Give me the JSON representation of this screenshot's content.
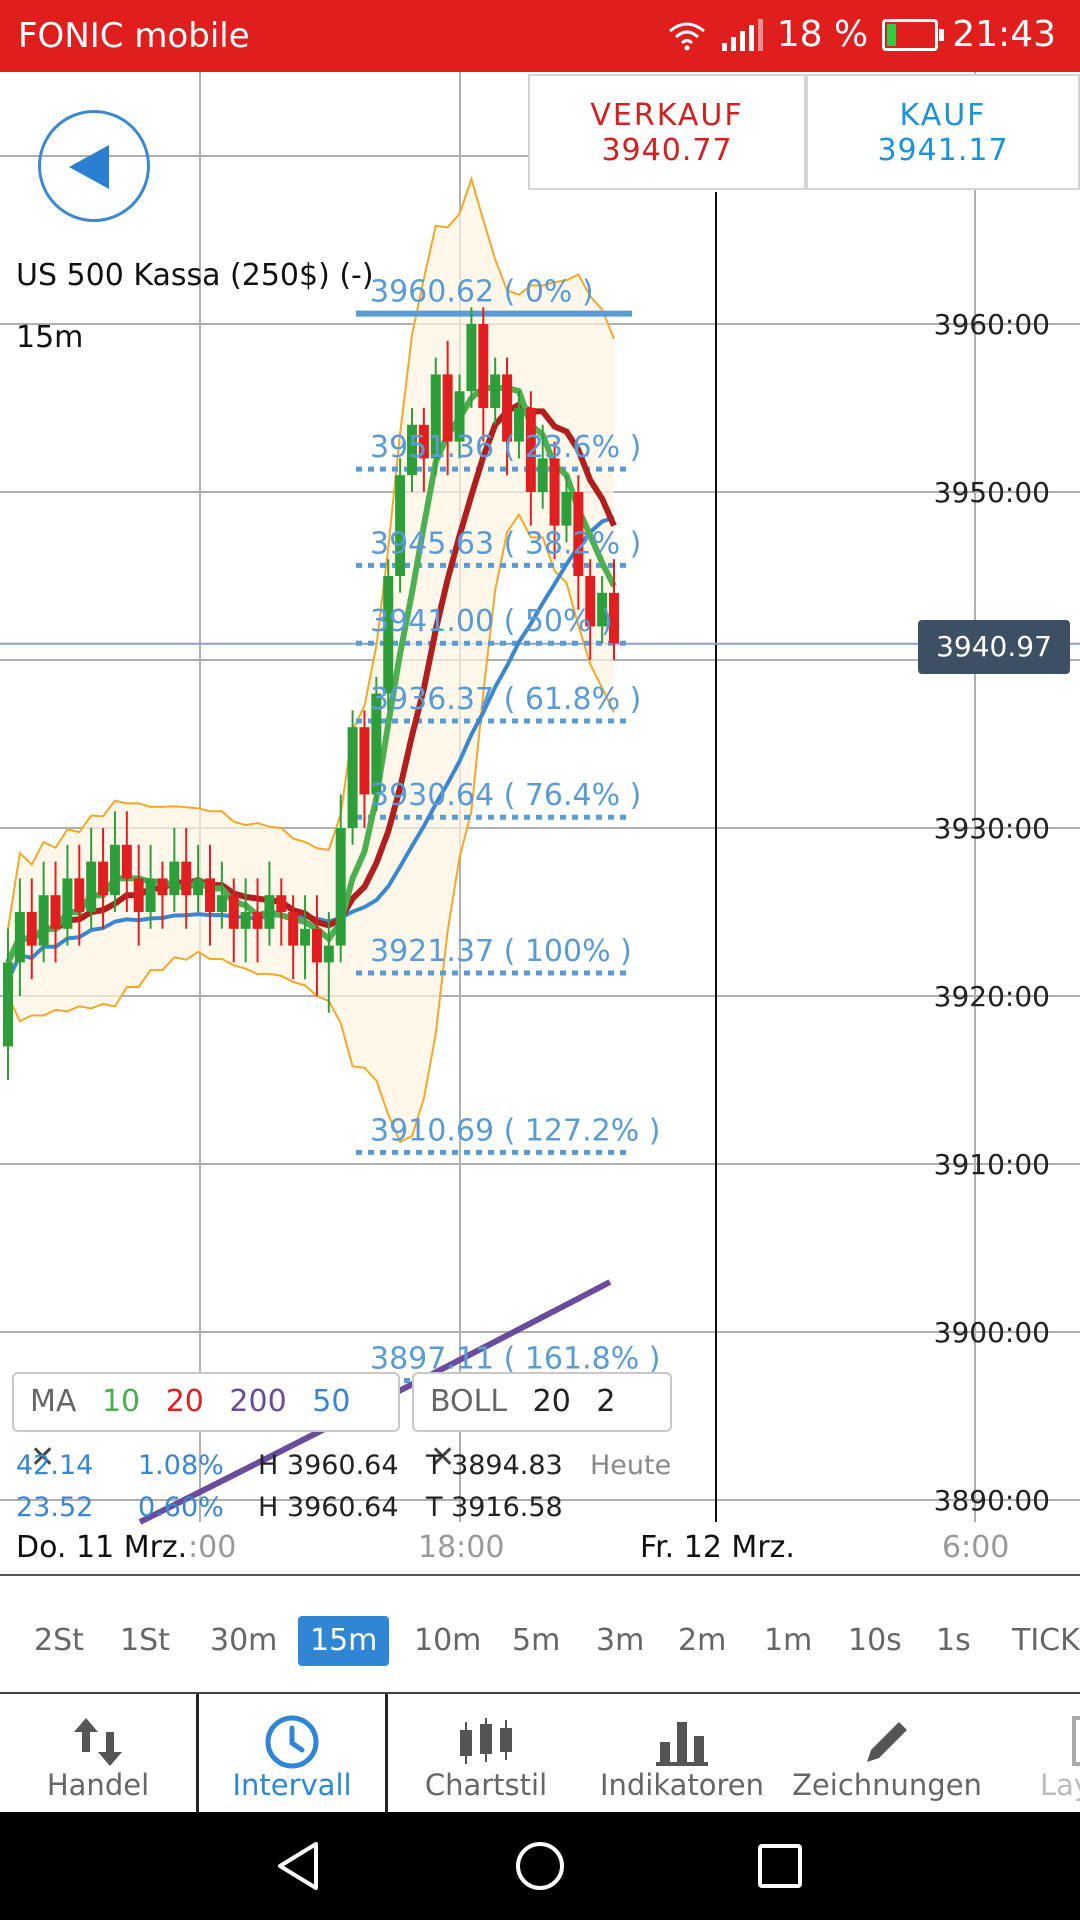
{
  "status_bar": {
    "carrier": "FONIC mobile",
    "battery_pct": "18 %",
    "time": "21:43"
  },
  "instrument": {
    "name": "US 500 Kassa (250$) (-)",
    "timeframe": "15m"
  },
  "trade": {
    "sell_label": "VERKAUF",
    "sell_price": "3940.77",
    "buy_label": "KAUF",
    "buy_price": "3941.17"
  },
  "current_price": "3940.97",
  "indicators": {
    "ma": {
      "label": "MA",
      "p10": "10",
      "p20": "20",
      "p200": "200",
      "p50": "50"
    },
    "boll": {
      "label": "BOLL",
      "p1": "20",
      "p2": "2"
    },
    "stats": [
      {
        "change": "42.14",
        "pct": "1.08%",
        "high": "H 3960.64",
        "low": "T 3894.83",
        "period": "Heute"
      },
      {
        "change": "23.52",
        "pct": "0.60%",
        "high": "H 3960.64",
        "low": "T 3916.58",
        "period": ""
      }
    ]
  },
  "x_axis": {
    "date1": "Do. 11 Mrz.",
    "t1": ":00",
    "t2": "18:00",
    "date2": "Fr. 12 Mrz.",
    "t3": "6:00"
  },
  "intervals": [
    "2St",
    "1St",
    "30m",
    "15m",
    "10m",
    "5m",
    "3m",
    "2m",
    "1m",
    "10s",
    "1s",
    "TICK"
  ],
  "active_interval": "15m",
  "toolbar": {
    "handel": "Handel",
    "intervall": "Intervall",
    "chartstil": "Chartstil",
    "indikatoren": "Indikatoren",
    "zeichnungen": "Zeichnungen",
    "layout": "Lay"
  },
  "colors": {
    "bull": "#2e9e3a",
    "bear": "#e02020",
    "ma10": "#4caf50",
    "ma20": "#b01e1e",
    "ma50": "#3a86d0",
    "ma200": "#6a4c9c",
    "boll": "#f4a82a",
    "fib": "#5b9bd5",
    "accent": "#2f86d4",
    "status": "#e01e1e"
  },
  "chart_data": {
    "type": "candlestick",
    "y_ticks": [
      "3960:00",
      "3950:00",
      "3940:00",
      "3930:00",
      "3920:00",
      "3910:00",
      "3900:00",
      "3890:00"
    ],
    "ylim": [
      3888,
      3970
    ],
    "fibonacci": [
      {
        "price": 3960.62,
        "label": "3960.62 ( 0% )"
      },
      {
        "price": 3951.36,
        "label": "3951.36 ( 23.6% )"
      },
      {
        "price": 3945.63,
        "label": "3945.63 ( 38.2% )"
      },
      {
        "price": 3941.0,
        "label": "3941.00 ( 50% )"
      },
      {
        "price": 3936.37,
        "label": "3936.37 ( 61.8% )"
      },
      {
        "price": 3930.64,
        "label": "3930.64 ( 76.4% )"
      },
      {
        "price": 3921.37,
        "label": "3921.37 ( 100% )"
      },
      {
        "price": 3910.69,
        "label": "3910.69 ( 127.2% )"
      },
      {
        "price": 3897.11,
        "label": "3897.11 ( 161.8% )"
      }
    ],
    "candles": [
      [
        3917,
        3922,
        3915,
        3924
      ],
      [
        3922,
        3925,
        3920,
        3927
      ],
      [
        3925,
        3923,
        3921,
        3927
      ],
      [
        3923,
        3926,
        3922,
        3928
      ],
      [
        3926,
        3924,
        3922,
        3928
      ],
      [
        3924,
        3927,
        3923,
        3929
      ],
      [
        3927,
        3925,
        3923,
        3929
      ],
      [
        3925,
        3928,
        3924,
        3930
      ],
      [
        3928,
        3926,
        3924,
        3930
      ],
      [
        3926,
        3929,
        3925,
        3931
      ],
      [
        3929,
        3927,
        3925,
        3931
      ],
      [
        3927,
        3925,
        3923,
        3929
      ],
      [
        3925,
        3927,
        3924,
        3929
      ],
      [
        3927,
        3926,
        3924,
        3928
      ],
      [
        3926,
        3928,
        3925,
        3930
      ],
      [
        3928,
        3926,
        3924,
        3930
      ],
      [
        3926,
        3927,
        3925,
        3929
      ],
      [
        3927,
        3925,
        3923,
        3929
      ],
      [
        3925,
        3926,
        3924,
        3928
      ],
      [
        3926,
        3924,
        3922,
        3927
      ],
      [
        3924,
        3925,
        3922,
        3927
      ],
      [
        3925,
        3924,
        3922,
        3927
      ],
      [
        3924,
        3926,
        3923,
        3928
      ],
      [
        3926,
        3925,
        3923,
        3927
      ],
      [
        3925,
        3923,
        3921,
        3926
      ],
      [
        3923,
        3924,
        3921,
        3926
      ],
      [
        3924,
        3922,
        3920,
        3926
      ],
      [
        3922,
        3923,
        3919,
        3925
      ],
      [
        3923,
        3930,
        3922,
        3932
      ],
      [
        3930,
        3936,
        3929,
        3937
      ],
      [
        3936,
        3932,
        3930,
        3937
      ],
      [
        3932,
        3938,
        3931,
        3939
      ],
      [
        3938,
        3945,
        3937,
        3946
      ],
      [
        3945,
        3951,
        3944,
        3952
      ],
      [
        3951,
        3954,
        3950,
        3955
      ],
      [
        3954,
        3952,
        3950,
        3955
      ],
      [
        3952,
        3957,
        3951,
        3958
      ],
      [
        3957,
        3953,
        3951,
        3959
      ],
      [
        3953,
        3956,
        3952,
        3957
      ],
      [
        3956,
        3960,
        3955,
        3961
      ],
      [
        3960,
        3955,
        3953,
        3961
      ],
      [
        3955,
        3957,
        3954,
        3958
      ],
      [
        3957,
        3953,
        3951,
        3958
      ],
      [
        3953,
        3955,
        3952,
        3956
      ],
      [
        3955,
        3950,
        3948,
        3956
      ],
      [
        3950,
        3952,
        3949,
        3954
      ],
      [
        3952,
        3948,
        3946,
        3953
      ],
      [
        3948,
        3950,
        3947,
        3951
      ],
      [
        3950,
        3945,
        3943,
        3951
      ],
      [
        3945,
        3942,
        3940,
        3946
      ],
      [
        3942,
        3944,
        3941,
        3945
      ],
      [
        3944,
        3941,
        3940,
        3946
      ]
    ]
  }
}
